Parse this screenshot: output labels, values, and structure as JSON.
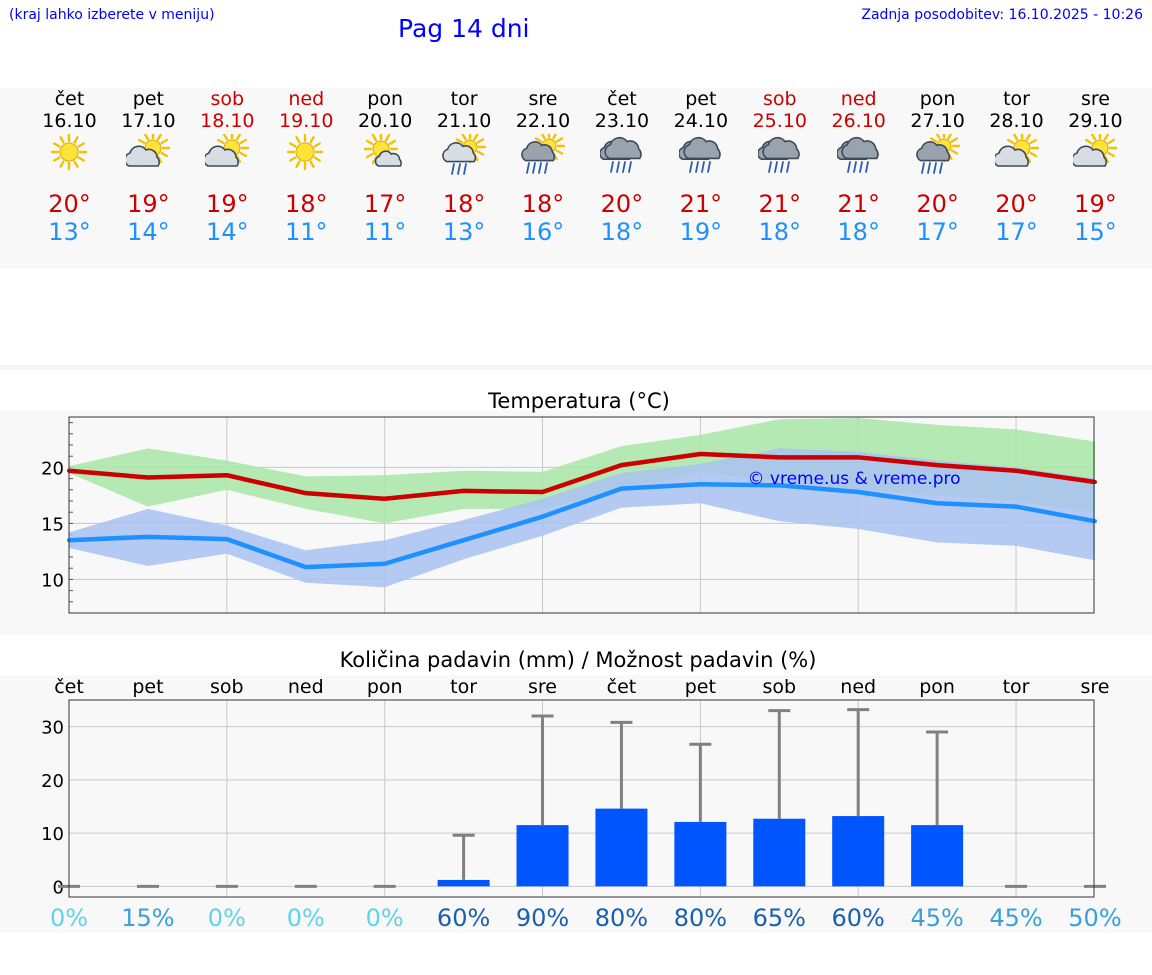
{
  "header": {
    "note": "(kraj lahko izberete v meniju)",
    "title": "Pag 14 dni",
    "updated": "Zadnja posodobitev: 16.10.2025 - 10:26"
  },
  "colors": {
    "weekday": "#000000",
    "weekend": "#cc0000",
    "tmax": "#cc0000",
    "tmin": "#1e90ff",
    "max_band": "#a8e6a8",
    "min_band": "#a9c2f2",
    "overlap_band": "#79c4ae",
    "bar": "#0055ff",
    "whisker": "#808080",
    "watermark": "#0000ff"
  },
  "days": [
    {
      "name": "čet",
      "date": "16.10",
      "weekend": false,
      "icon": "sunny",
      "tmax": "20°",
      "tmin": "13°"
    },
    {
      "name": "pet",
      "date": "17.10",
      "weekend": false,
      "icon": "partly-cloudy",
      "tmax": "19°",
      "tmin": "14°"
    },
    {
      "name": "sob",
      "date": "18.10",
      "weekend": true,
      "icon": "partly-cloudy",
      "tmax": "19°",
      "tmin": "14°"
    },
    {
      "name": "ned",
      "date": "19.10",
      "weekend": true,
      "icon": "sunny",
      "tmax": "18°",
      "tmin": "11°"
    },
    {
      "name": "pon",
      "date": "20.10",
      "weekend": false,
      "icon": "sun-small-cloud",
      "tmax": "17°",
      "tmin": "11°"
    },
    {
      "name": "tor",
      "date": "21.10",
      "weekend": false,
      "icon": "sun-cloud-light-rain",
      "tmax": "18°",
      "tmin": "13°"
    },
    {
      "name": "sre",
      "date": "22.10",
      "weekend": false,
      "icon": "sun-cloud-rain",
      "tmax": "18°",
      "tmin": "16°"
    },
    {
      "name": "čet",
      "date": "23.10",
      "weekend": false,
      "icon": "cloud-rain",
      "tmax": "20°",
      "tmin": "18°"
    },
    {
      "name": "pet",
      "date": "24.10",
      "weekend": false,
      "icon": "cloud-rain",
      "tmax": "21°",
      "tmin": "19°"
    },
    {
      "name": "sob",
      "date": "25.10",
      "weekend": true,
      "icon": "cloud-rain",
      "tmax": "21°",
      "tmin": "18°"
    },
    {
      "name": "ned",
      "date": "26.10",
      "weekend": true,
      "icon": "cloud-rain",
      "tmax": "21°",
      "tmin": "18°"
    },
    {
      "name": "pon",
      "date": "27.10",
      "weekend": false,
      "icon": "sun-cloud-rain",
      "tmax": "20°",
      "tmin": "17°"
    },
    {
      "name": "tor",
      "date": "28.10",
      "weekend": false,
      "icon": "partly-cloudy",
      "tmax": "20°",
      "tmin": "17°"
    },
    {
      "name": "sre",
      "date": "29.10",
      "weekend": false,
      "icon": "partly-cloudy",
      "tmax": "19°",
      "tmin": "15°"
    }
  ],
  "chart_data": [
    {
      "type": "line",
      "title": "Temperatura (°C)",
      "x": [
        "16.10",
        "17.10",
        "18.10",
        "19.10",
        "20.10",
        "21.10",
        "22.10",
        "23.10",
        "24.10",
        "25.10",
        "26.10",
        "27.10",
        "28.10",
        "29.10"
      ],
      "ylim": [
        7,
        24.5
      ],
      "yticks": [
        10,
        15,
        20
      ],
      "grid": true,
      "series": [
        {
          "role": "max",
          "values": [
            19.7,
            19.1,
            19.3,
            17.7,
            17.2,
            17.9,
            17.8,
            20.2,
            21.2,
            20.9,
            20.9,
            20.2,
            19.7,
            18.7
          ],
          "band_low": [
            19.5,
            16.5,
            18.0,
            16.3,
            15.0,
            16.3,
            16.3,
            18.0,
            19.5,
            18.8,
            18.0,
            17.5,
            17.0,
            16.0
          ],
          "band_high": [
            20.1,
            21.7,
            20.6,
            19.2,
            19.3,
            19.7,
            19.6,
            21.9,
            22.9,
            24.3,
            24.4,
            23.8,
            23.4,
            22.3
          ]
        },
        {
          "role": "min",
          "values": [
            13.5,
            13.8,
            13.6,
            11.1,
            11.4,
            13.5,
            15.6,
            18.1,
            18.5,
            18.4,
            17.8,
            16.8,
            16.5,
            15.2
          ],
          "band_low": [
            12.8,
            11.2,
            12.3,
            9.7,
            9.3,
            11.8,
            13.9,
            16.4,
            16.8,
            15.2,
            14.5,
            13.3,
            13.0,
            11.7
          ],
          "band_high": [
            14.2,
            16.3,
            14.8,
            12.6,
            13.5,
            15.3,
            17.2,
            19.5,
            20.3,
            21.7,
            21.4,
            20.6,
            20.0,
            19.0
          ]
        }
      ],
      "watermark": "© vreme.us & vreme.pro"
    },
    {
      "type": "bar",
      "title": "Količina padavin (mm) / Možnost padavin (%)",
      "categories": [
        "čet",
        "pet",
        "sob",
        "ned",
        "pon",
        "tor",
        "sre",
        "čet",
        "pet",
        "sob",
        "ned",
        "pon",
        "tor",
        "sre"
      ],
      "ylim": [
        -2,
        35
      ],
      "yticks": [
        0,
        10,
        20,
        30
      ],
      "values": [
        0,
        0,
        0,
        0,
        0,
        1.2,
        11.5,
        14.6,
        12.1,
        12.7,
        13.2,
        11.5,
        0,
        0
      ],
      "whisker_high": [
        0,
        0,
        0,
        0,
        0,
        9.6,
        32.0,
        30.8,
        26.7,
        33.0,
        33.2,
        29.0,
        0,
        0
      ],
      "probability": [
        "0%",
        "15%",
        "0%",
        "0%",
        "0%",
        "60%",
        "90%",
        "80%",
        "80%",
        "65%",
        "60%",
        "45%",
        "45%",
        "50%"
      ],
      "probability_colors": [
        "#5fd3e8",
        "#3aa0dc",
        "#5fd3e8",
        "#5fd3e8",
        "#5fd3e8",
        "#1a5fb0",
        "#1a5fb0",
        "#1a5fb0",
        "#1a5fb0",
        "#1a5fb0",
        "#1a5fb0",
        "#3aa0dc",
        "#3aa0dc",
        "#3aa0dc"
      ],
      "grid": true
    }
  ]
}
